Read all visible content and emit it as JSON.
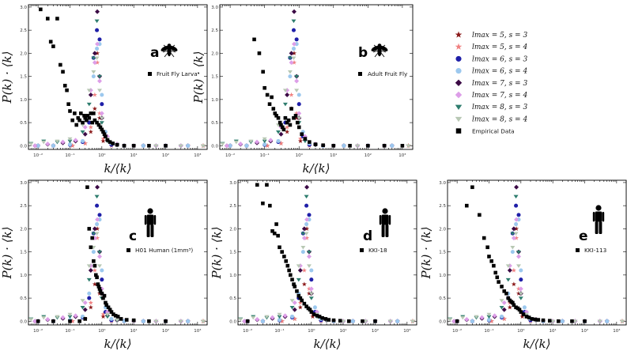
{
  "chart_data": {
    "type": "scatter",
    "xscale": "log",
    "xlim": [
      0.005,
      2000
    ],
    "ylim": [
      -0.08,
      3.05
    ],
    "ylabel": "P(k) · ⟨k⟩",
    "xlabel": "k/⟨k⟩",
    "y_ticks": [
      "0.0",
      "0.5",
      "1.0",
      "1.5",
      "2.0",
      "2.5",
      "3.0"
    ],
    "x_tick_labels": [
      "10⁻²",
      "10⁻¹",
      "10⁰",
      "10¹",
      "10²",
      "10³"
    ],
    "model_legend": [
      {
        "label": "l_max = 5, s = 3",
        "math": "lmax = 5, s = 3",
        "marker": "star",
        "color": "#8b1a1a"
      },
      {
        "label": "l_max = 5, s = 4",
        "math": "lmax = 5, s = 4",
        "marker": "star",
        "color": "#f08080"
      },
      {
        "label": "l_max = 6, s = 3",
        "math": "lmax = 6, s = 3",
        "marker": "circle",
        "color": "#1f1fa8"
      },
      {
        "label": "l_max = 6, s = 4",
        "math": "lmax = 6, s = 4",
        "marker": "circle",
        "color": "#9cc8ee"
      },
      {
        "label": "l_max = 7, s = 3",
        "math": "lmax = 7, s = 3",
        "marker": "diamond",
        "color": "#3b0a45"
      },
      {
        "label": "l_max = 7, s = 4",
        "math": "lmax = 7, s = 4",
        "marker": "diamond",
        "color": "#dd9ee8"
      },
      {
        "label": "l_max = 8, s = 3",
        "math": "lmax = 8, s = 3",
        "marker": "tri-down",
        "color": "#2e7d6e"
      },
      {
        "label": "l_max = 8, s = 4",
        "math": "lmax = 8, s = 4",
        "marker": "tri-down",
        "color": "#b8c8b4"
      },
      {
        "label": "Empirical Data",
        "marker": "square",
        "color": "#000000"
      }
    ],
    "model_series": [
      {
        "name": "l_max = 5, s = 3",
        "x": [
          0.01,
          0.03,
          0.12,
          0.3,
          0.45,
          0.6,
          0.72,
          0.85,
          1.1,
          2,
          5,
          20,
          100,
          500,
          1500
        ],
        "y": [
          0,
          0,
          0,
          0.05,
          0.3,
          0.8,
          2.0,
          0.6,
          0.1,
          0,
          0,
          0,
          0,
          0,
          0
        ]
      },
      {
        "name": "l_max = 5, s = 4",
        "x": [
          0.01,
          0.03,
          0.12,
          0.3,
          0.45,
          0.6,
          0.72,
          0.85,
          1.1,
          2,
          5,
          20,
          100,
          500,
          1500
        ],
        "y": [
          0,
          0,
          0,
          0.05,
          0.4,
          1.1,
          1.8,
          0.7,
          0.15,
          0,
          0,
          0,
          0,
          0,
          0
        ]
      },
      {
        "name": "l_max = 6, s = 3",
        "x": [
          0.01,
          0.03,
          0.1,
          0.25,
          0.4,
          0.55,
          0.7,
          0.85,
          1.0,
          1.3,
          2,
          5,
          20,
          100,
          500
        ],
        "y": [
          0,
          0,
          0.02,
          0.08,
          0.5,
          1.9,
          2.5,
          2.3,
          0.9,
          0.2,
          0.02,
          0,
          0,
          0,
          0
        ]
      },
      {
        "name": "l_max = 6, s = 4",
        "x": [
          0.01,
          0.03,
          0.1,
          0.25,
          0.4,
          0.55,
          0.7,
          0.85,
          1.0,
          1.3,
          2,
          5,
          20,
          100,
          500
        ],
        "y": [
          0,
          0,
          0.03,
          0.1,
          0.6,
          1.5,
          2.1,
          2.2,
          1.1,
          0.3,
          0.05,
          0,
          0,
          0,
          0
        ]
      },
      {
        "name": "l_max = 7, s = 3",
        "x": [
          0.008,
          0.02,
          0.06,
          0.15,
          0.3,
          0.45,
          0.6,
          0.72,
          0.85,
          1.0,
          1.5,
          3,
          10,
          50,
          300
        ],
        "y": [
          0,
          0.03,
          0.06,
          0.1,
          0.25,
          1.1,
          2.0,
          2.9,
          1.5,
          0.6,
          0.12,
          0.02,
          0,
          0,
          0
        ]
      },
      {
        "name": "l_max = 7, s = 4",
        "x": [
          0.008,
          0.02,
          0.06,
          0.15,
          0.3,
          0.45,
          0.6,
          0.72,
          0.85,
          1.0,
          1.5,
          3,
          10,
          50,
          300
        ],
        "y": [
          0,
          0.04,
          0.08,
          0.12,
          0.4,
          1.2,
          1.8,
          2.2,
          1.4,
          0.7,
          0.2,
          0.04,
          0,
          0,
          0
        ]
      },
      {
        "name": "l_max = 8, s = 3",
        "x": [
          0.006,
          0.015,
          0.04,
          0.1,
          0.25,
          0.4,
          0.55,
          0.7,
          0.85,
          1.0,
          1.5,
          3,
          10,
          50,
          300,
          1500
        ],
        "y": [
          0.05,
          0.1,
          0.08,
          0.1,
          0.3,
          0.9,
          1.9,
          2.7,
          1.5,
          0.5,
          0.1,
          0.02,
          0,
          0,
          0,
          0
        ]
      },
      {
        "name": "l_max = 8, s = 4",
        "x": [
          0.006,
          0.015,
          0.04,
          0.1,
          0.25,
          0.4,
          0.55,
          0.7,
          0.85,
          1.0,
          1.5,
          3,
          10,
          50,
          300,
          1500
        ],
        "y": [
          0.04,
          0.08,
          0.1,
          0.15,
          0.45,
          1.2,
          1.6,
          1.9,
          1.2,
          0.6,
          0.15,
          0.03,
          0,
          0,
          0,
          0
        ]
      }
    ],
    "panels": [
      {
        "letter": "a",
        "legend_label": "Fruit Fly Larva",
        "icon": "fly-icon",
        "row": 0,
        "col": 0,
        "empirical": {
          "x": [
            0.012,
            0.02,
            0.025,
            0.03,
            0.04,
            0.05,
            0.06,
            0.07,
            0.08,
            0.09,
            0.1,
            0.12,
            0.14,
            0.16,
            0.18,
            0.2,
            0.22,
            0.25,
            0.28,
            0.3,
            0.33,
            0.36,
            0.4,
            0.45,
            0.5,
            0.55,
            0.6,
            0.7,
            0.8,
            0.9,
            1.0,
            1.1,
            1.2,
            1.3,
            1.5,
            1.8,
            2.2,
            3,
            5,
            10,
            30,
            100
          ],
          "y": [
            2.95,
            2.75,
            2.25,
            2.15,
            2.75,
            1.75,
            1.6,
            1.3,
            1.2,
            0.9,
            0.75,
            0.55,
            0.7,
            0.45,
            0.6,
            0.55,
            0.7,
            0.5,
            0.65,
            0.6,
            0.55,
            0.65,
            0.6,
            0.7,
            0.5,
            0.7,
            0.55,
            0.5,
            0.45,
            0.4,
            0.35,
            0.3,
            0.25,
            0.2,
            0.12,
            0.08,
            0.05,
            0.02,
            0,
            0,
            0,
            0
          ]
        }
      },
      {
        "letter": "b",
        "legend_label": "Adult Fruit Fly",
        "icon": "fly-icon",
        "row": 0,
        "col": 1,
        "empirical": {
          "x": [
            0.05,
            0.07,
            0.09,
            0.1,
            0.12,
            0.14,
            0.16,
            0.18,
            0.2,
            0.22,
            0.25,
            0.28,
            0.3,
            0.33,
            0.36,
            0.4,
            0.45,
            0.5,
            0.55,
            0.6,
            0.7,
            0.8,
            0.9,
            1.0,
            1.2,
            1.5,
            2,
            3,
            5,
            10,
            30,
            100,
            300,
            1000
          ],
          "y": [
            2.3,
            2.0,
            1.6,
            1.25,
            1.1,
            0.9,
            1.05,
            0.8,
            0.7,
            0.65,
            0.6,
            0.5,
            0.45,
            0.4,
            0.35,
            0.6,
            0.5,
            0.55,
            0.45,
            0.8,
            0.6,
            0.65,
            0.5,
            0.4,
            0.25,
            0.15,
            0.08,
            0.03,
            0.01,
            0,
            0,
            0,
            0,
            0
          ]
        }
      },
      {
        "letter": "c",
        "legend_label": "H01 Human (1mm³)",
        "icon": "human-icon",
        "row": 1,
        "col": 0,
        "empirical": {
          "x": [
            0.01,
            0.03,
            0.1,
            0.2,
            0.3,
            0.35,
            0.4,
            0.45,
            0.5,
            0.55,
            0.6,
            0.65,
            0.7,
            0.75,
            0.8,
            0.85,
            0.9,
            1.0,
            1.1,
            1.2,
            1.3,
            1.4,
            1.6,
            1.8,
            2.0,
            2.3,
            2.7,
            3.2,
            4,
            6,
            10,
            30,
            100
          ],
          "y": [
            0,
            0,
            0,
            0,
            0.05,
            2.9,
            2.0,
            1.6,
            1.8,
            1.3,
            1.2,
            1.0,
            0.95,
            0.8,
            0.75,
            0.7,
            0.65,
            0.6,
            0.5,
            0.55,
            0.4,
            0.35,
            0.3,
            0.25,
            0.2,
            0.15,
            0.12,
            0.1,
            0.05,
            0.03,
            0.02,
            0,
            0
          ]
        }
      },
      {
        "letter": "d",
        "legend_label": "KKI-18",
        "icon": "human-icon",
        "row": 1,
        "col": 1,
        "empirical": {
          "x": [
            0.01,
            0.02,
            0.03,
            0.04,
            0.05,
            0.06,
            0.07,
            0.08,
            0.09,
            0.1,
            0.12,
            0.14,
            0.16,
            0.18,
            0.2,
            0.22,
            0.25,
            0.28,
            0.3,
            0.35,
            0.4,
            0.45,
            0.5,
            0.6,
            0.7,
            0.8,
            0.9,
            1.0,
            1.2,
            1.5,
            1.8,
            2.2,
            2.8,
            3.5,
            5,
            8,
            15,
            40,
            100
          ],
          "y": [
            0,
            2.95,
            2.55,
            2.95,
            2.5,
            1.95,
            1.9,
            2.1,
            1.85,
            1.6,
            1.5,
            1.4,
            1.3,
            1.2,
            1.1,
            1.0,
            0.9,
            0.8,
            0.75,
            0.65,
            0.55,
            0.5,
            0.45,
            0.38,
            0.32,
            0.28,
            0.25,
            0.2,
            0.15,
            0.12,
            0.1,
            0.07,
            0.05,
            0.03,
            0.02,
            0.01,
            0,
            0,
            0
          ]
        }
      },
      {
        "letter": "e",
        "legend_label": "KKI-113",
        "icon": "human-icon",
        "row": 1,
        "col": 2,
        "empirical": {
          "x": [
            0.01,
            0.02,
            0.03,
            0.05,
            0.07,
            0.09,
            0.1,
            0.12,
            0.14,
            0.16,
            0.18,
            0.2,
            0.25,
            0.3,
            0.35,
            0.4,
            0.45,
            0.5,
            0.55,
            0.6,
            0.7,
            0.8,
            0.9,
            1.0,
            1.2,
            1.5,
            1.8,
            2.2,
            2.8,
            3.5,
            5,
            8,
            15,
            40,
            100
          ],
          "y": [
            0,
            2.5,
            2.9,
            2.3,
            1.8,
            1.6,
            1.4,
            1.3,
            1.2,
            1.05,
            0.95,
            0.85,
            0.75,
            0.65,
            0.6,
            0.5,
            0.45,
            0.42,
            0.4,
            0.35,
            0.3,
            0.28,
            0.25,
            0.2,
            0.15,
            0.1,
            0.08,
            0.05,
            0.04,
            0.03,
            0.02,
            0.01,
            0,
            0,
            0
          ]
        }
      }
    ]
  }
}
